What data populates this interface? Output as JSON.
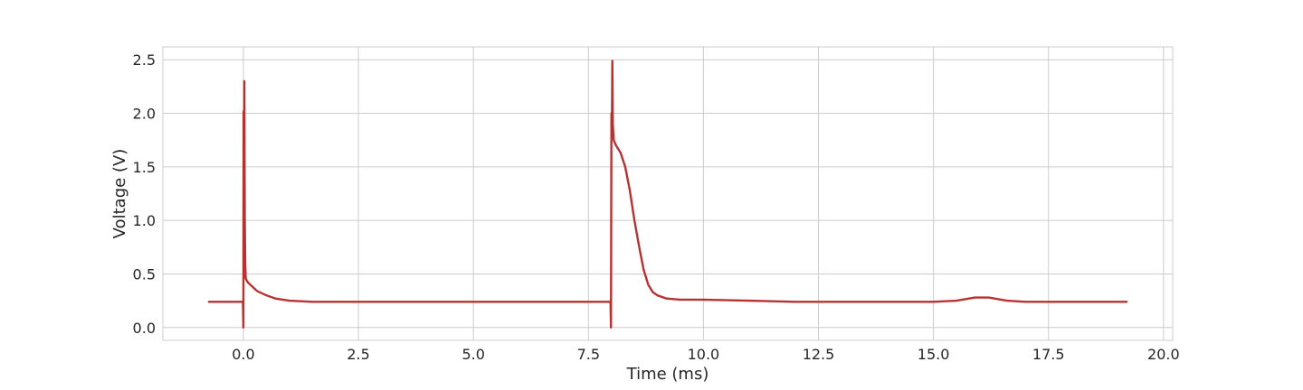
{
  "chart_data": {
    "type": "line",
    "title": "",
    "xlabel": "Time (ms)",
    "ylabel": "Voltage (V)",
    "xlim": [
      -1.75,
      20.2
    ],
    "ylim": [
      -0.12,
      2.62
    ],
    "xticks": [
      0.0,
      2.5,
      5.0,
      7.5,
      10.0,
      12.5,
      15.0,
      17.5,
      20.0
    ],
    "xtick_labels": [
      "0.0",
      "2.5",
      "5.0",
      "7.5",
      "10.0",
      "12.5",
      "15.0",
      "17.5",
      "20.0"
    ],
    "yticks": [
      0.0,
      0.5,
      1.0,
      1.5,
      2.0,
      2.5
    ],
    "ytick_labels": [
      "0.0",
      "0.5",
      "1.0",
      "1.5",
      "2.0",
      "2.5"
    ],
    "grid": true,
    "legend": "none",
    "series": [
      {
        "color": "#b83232",
        "x": [
          -0.75,
          -0.5,
          -0.25,
          -0.05,
          -0.01,
          0.0,
          0.005,
          0.01,
          0.02,
          0.03,
          0.04,
          0.05,
          0.07,
          0.1,
          0.2,
          0.3,
          0.5,
          0.7,
          1.0,
          1.5,
          2.0,
          3.0,
          4.0,
          5.0,
          6.0,
          7.0,
          7.9,
          7.98,
          7.99,
          8.0,
          8.01,
          8.02,
          8.03,
          8.05,
          8.1,
          8.2,
          8.3,
          8.4,
          8.5,
          8.6,
          8.7,
          8.8,
          8.9,
          9.0,
          9.2,
          9.5,
          10.0,
          11.0,
          12.0,
          13.0,
          14.0,
          15.0,
          15.5,
          15.9,
          16.2,
          16.6,
          17.0,
          18.0,
          19.0,
          19.2
        ],
        "y": [
          0.24,
          0.24,
          0.24,
          0.24,
          0.24,
          0.0,
          2.02,
          0.5,
          2.3,
          1.0,
          0.6,
          0.46,
          0.44,
          0.42,
          0.38,
          0.34,
          0.3,
          0.27,
          0.25,
          0.24,
          0.24,
          0.24,
          0.24,
          0.24,
          0.24,
          0.24,
          0.24,
          0.24,
          0.0,
          2.0,
          1.8,
          2.49,
          1.9,
          1.75,
          1.7,
          1.63,
          1.5,
          1.28,
          1.0,
          0.76,
          0.54,
          0.4,
          0.33,
          0.3,
          0.27,
          0.26,
          0.26,
          0.25,
          0.24,
          0.24,
          0.24,
          0.24,
          0.25,
          0.28,
          0.28,
          0.25,
          0.24,
          0.24,
          0.24,
          0.24
        ]
      }
    ]
  }
}
